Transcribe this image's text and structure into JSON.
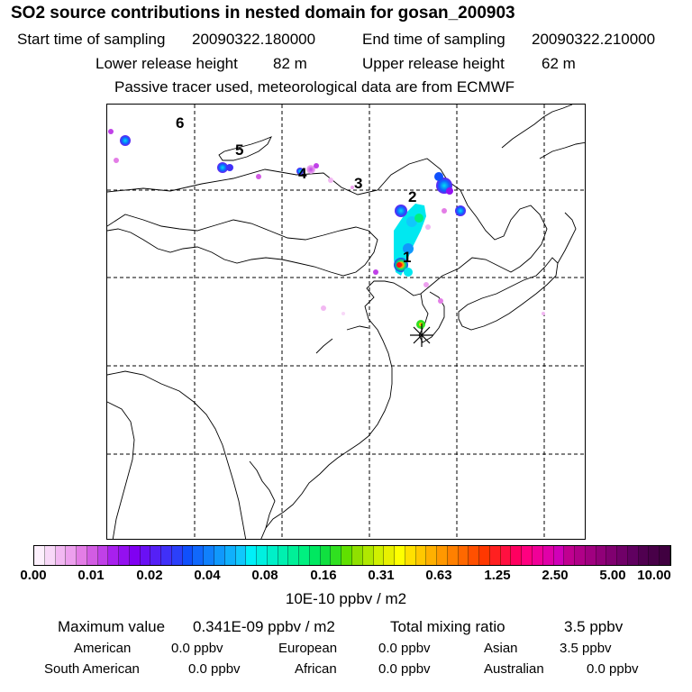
{
  "header": {
    "title": "SO2 source contributions in nested domain for gosan_200903",
    "start_label": "Start time of sampling",
    "start_value": "20090322.180000",
    "end_label": "End time of sampling",
    "end_value": "20090322.210000",
    "lower_label": "Lower release height",
    "lower_value": "82 m",
    "upper_label": "Upper release height",
    "upper_value": "62 m",
    "tracer_note": "Passive tracer used, meteorological data are from ECMWF"
  },
  "map": {
    "source_labels": [
      "1",
      "2",
      "3",
      "4",
      "5",
      "6"
    ],
    "receptor_icon": "asterisk-receptor-icon"
  },
  "colorbar": {
    "tick_labels": [
      "0.00",
      "0.01",
      "0.02",
      "0.04",
      "0.08",
      "0.16",
      "0.31",
      "0.63",
      "1.25",
      "2.50",
      "5.00",
      "10.00"
    ],
    "unit": "10E-10 ppbv / m2",
    "colors": [
      "#fdf0fd",
      "#f8d8f8",
      "#f2b8f2",
      "#eda0ee",
      "#e37de6",
      "#d25ce3",
      "#c040e8",
      "#a820ee",
      "#9410f0",
      "#8000f2",
      "#6a10f4",
      "#5520f6",
      "#4030f8",
      "#2b40fa",
      "#1050fc",
      "#1068fc",
      "#1080fc",
      "#1098fc",
      "#10b0fc",
      "#10c8fc",
      "#00f0f8",
      "#00f0e0",
      "#00f0c8",
      "#00f0b0",
      "#00f098",
      "#00f080",
      "#00e860",
      "#10e040",
      "#30e020",
      "#60e000",
      "#90e000",
      "#b0e800",
      "#d0f000",
      "#e8f000",
      "#ffff00",
      "#ffe000",
      "#ffc800",
      "#ffb000",
      "#ff9800",
      "#ff8000",
      "#ff6800",
      "#ff5000",
      "#ff3800",
      "#ff2020",
      "#ff1040",
      "#ff0060",
      "#ff0080",
      "#f00098",
      "#e000a8",
      "#d000b8",
      "#c00090",
      "#b00088",
      "#a00080",
      "#900078",
      "#800070",
      "#700068",
      "#600060",
      "#500050",
      "#480048",
      "#400040"
    ]
  },
  "summary": {
    "max_label": "Maximum value",
    "max_value": "0.341E-09 ppbv / m2",
    "total_label": "Total mixing ratio",
    "total_value": "3.5 ppbv",
    "regions": [
      {
        "name": "American",
        "value": "0.0 ppbv"
      },
      {
        "name": "European",
        "value": "0.0 ppbv"
      },
      {
        "name": "Asian",
        "value": "3.5 ppbv"
      },
      {
        "name": "South American",
        "value": "0.0 ppbv"
      },
      {
        "name": "African",
        "value": "0.0 ppbv"
      },
      {
        "name": "Australian",
        "value": "0.0 ppbv"
      }
    ]
  }
}
